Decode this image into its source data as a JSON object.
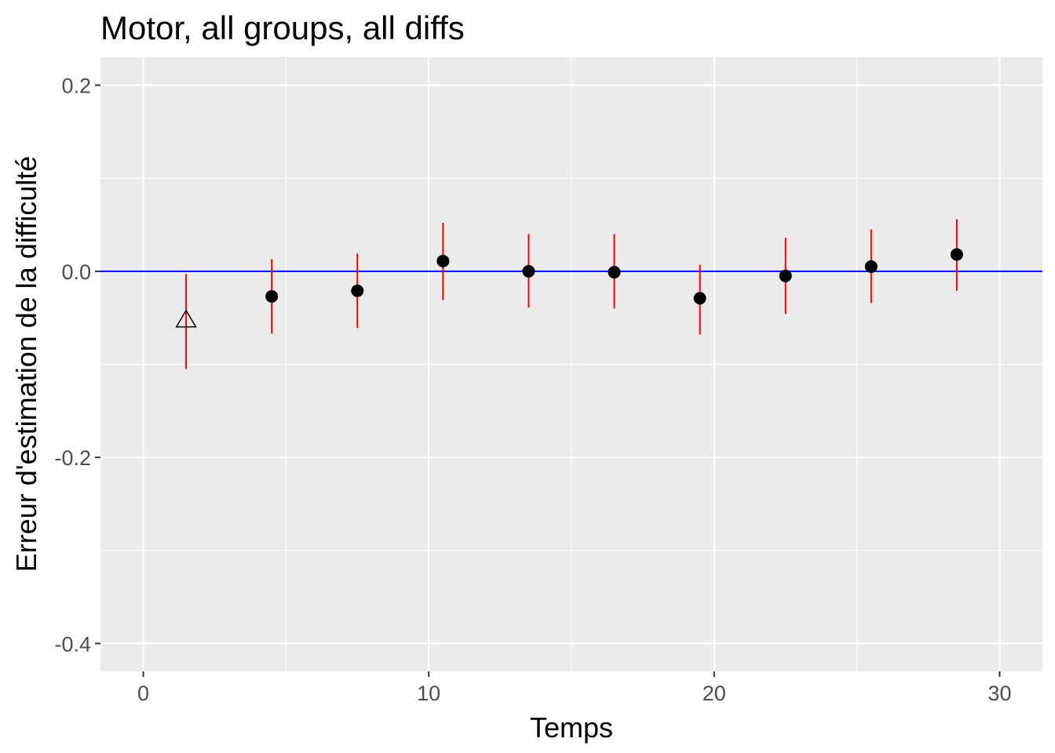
{
  "chart_data": {
    "type": "scatter",
    "title": "Motor, all groups, all diffs",
    "xlabel": "Temps",
    "ylabel": "Erreur d'estimation de la difficulté",
    "xlim": [
      -1.5,
      31.5
    ],
    "ylim": [
      -0.43,
      0.23
    ],
    "x_ticks": [
      0,
      10,
      20,
      30
    ],
    "x_tick_labels": [
      "0",
      "10",
      "20",
      "30"
    ],
    "y_ticks": [
      -0.4,
      -0.2,
      0.0,
      0.2
    ],
    "y_tick_labels": [
      "-0.4",
      "-0.2",
      "0.0",
      "0.2"
    ],
    "grid": true,
    "reference_line": {
      "y": 0.0,
      "color": "#0000ff"
    },
    "colors": {
      "panel_background": "#ebebeb",
      "grid": "#ffffff",
      "point": "#000000",
      "error_bar": "#ff0000"
    },
    "series": [
      {
        "x": [
          1.5,
          4.5,
          7.5,
          10.5,
          13.5,
          16.5,
          19.5,
          22.5,
          25.5,
          28.5
        ],
        "y": [
          -0.053,
          -0.027,
          -0.021,
          0.011,
          0.0,
          -0.001,
          -0.029,
          -0.005,
          0.005,
          0.018
        ],
        "ymin": [
          -0.105,
          -0.067,
          -0.061,
          -0.031,
          -0.039,
          -0.04,
          -0.068,
          -0.046,
          -0.034,
          -0.021
        ],
        "ymax": [
          -0.003,
          0.013,
          0.019,
          0.052,
          0.04,
          0.04,
          0.007,
          0.036,
          0.045,
          0.056
        ],
        "shape": [
          "triangle-open",
          "circle",
          "circle",
          "circle",
          "circle",
          "circle",
          "circle",
          "circle",
          "circle",
          "circle"
        ]
      }
    ]
  }
}
